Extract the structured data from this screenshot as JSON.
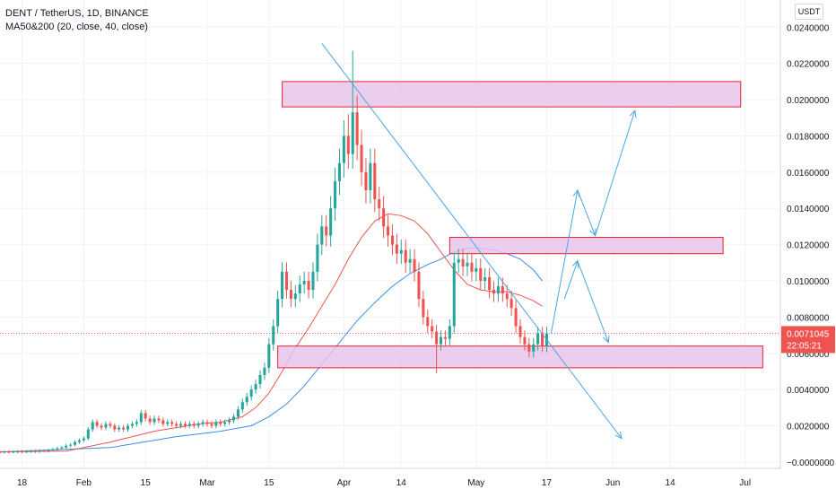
{
  "legend": {
    "symbol": "DENT / TetherUS, 1D, BINANCE",
    "indicator": "MA50&200 (20, close, 40, close)"
  },
  "currency": "USDT",
  "price_label": {
    "value": "0.0071045",
    "timer": "22:05:21",
    "color": "#ef5350"
  },
  "colors": {
    "up": "#26a69a",
    "down": "#ef5350",
    "ma_fast": "#ef5350",
    "ma_slow": "#3a8ee6",
    "zone_fill": "#e8c4ea",
    "zone_stroke": "#ef1f2f",
    "drawing": "#4aa8e0"
  },
  "chart_data": {
    "type": "candlestick",
    "title": "DENT / TetherUS, 1D, BINANCE",
    "ylim": [
      -0.0005,
      0.0255
    ],
    "y_ticks": [
      "0.0240000",
      "0.0220000",
      "0.0200000",
      "0.0180000",
      "0.0160000",
      "0.0140000",
      "0.0120000",
      "0.0100000",
      "0.0080000",
      "0.0060000",
      "0.0040000",
      "0.0020000",
      "−0.0000000"
    ],
    "y_tick_values": [
      0.024,
      0.022,
      0.02,
      0.018,
      0.016,
      0.014,
      0.012,
      0.01,
      0.008,
      0.006,
      0.004,
      0.002,
      0
    ],
    "x_ticks": [
      {
        "label": "18",
        "date": "2021-01-18"
      },
      {
        "label": "Feb",
        "date": "2021-02-01"
      },
      {
        "label": "15",
        "date": "2021-02-15"
      },
      {
        "label": "Mar",
        "date": "2021-03-01"
      },
      {
        "label": "15",
        "date": "2021-03-15"
      },
      {
        "label": "Apr",
        "date": "2021-04-01"
      },
      {
        "label": "14",
        "date": "2021-04-14"
      },
      {
        "label": "May",
        "date": "2021-05-01"
      },
      {
        "label": "17",
        "date": "2021-05-17"
      },
      {
        "label": "Jun",
        "date": "2021-06-01"
      },
      {
        "label": "14",
        "date": "2021-06-14"
      },
      {
        "label": "Jul",
        "date": "2021-07-01"
      }
    ],
    "first_date": "2021-01-08",
    "closes": [
      0.00055,
      0.00056,
      0.00055,
      0.00056,
      0.00056,
      0.00055,
      0.00057,
      0.00056,
      0.00057,
      0.00058,
      0.00057,
      0.00058,
      0.0006,
      0.00058,
      0.00062,
      0.0006,
      0.00065,
      0.0007,
      0.00075,
      0.0008,
      0.0009,
      0.00095,
      0.0011,
      0.0012,
      0.0013,
      0.0018,
      0.0022,
      0.002,
      0.0019,
      0.0021,
      0.002,
      0.0018,
      0.0019,
      0.0018,
      0.002,
      0.0021,
      0.0022,
      0.0027,
      0.0024,
      0.0022,
      0.0024,
      0.0023,
      0.0021,
      0.0022,
      0.0021,
      0.002,
      0.0021,
      0.002,
      0.0021,
      0.002,
      0.0021,
      0.0022,
      0.0021,
      0.002,
      0.0022,
      0.0021,
      0.0022,
      0.0023,
      0.0025,
      0.0029,
      0.0033,
      0.0036,
      0.004,
      0.0043,
      0.0048,
      0.0052,
      0.0065,
      0.0075,
      0.009,
      0.0105,
      0.0095,
      0.009,
      0.0093,
      0.0098,
      0.01,
      0.0095,
      0.0105,
      0.012,
      0.013,
      0.0125,
      0.014,
      0.0155,
      0.0165,
      0.018,
      0.017,
      0.0193,
      0.0175,
      0.016,
      0.015,
      0.0165,
      0.0145,
      0.014,
      0.013,
      0.0125,
      0.012,
      0.0115,
      0.0117,
      0.011,
      0.0112,
      0.0105,
      0.009,
      0.008,
      0.0075,
      0.0072,
      0.0065,
      0.0069,
      0.0068,
      0.0075,
      0.011,
      0.0112,
      0.0108,
      0.011,
      0.0105,
      0.0107,
      0.01,
      0.0102,
      0.0095,
      0.0093,
      0.0097,
      0.0093,
      0.009,
      0.0085,
      0.0075,
      0.0069,
      0.0065,
      0.0061,
      0.0065,
      0.0071,
      0.0064,
      0.0071
    ],
    "ma20": [
      [
        0,
        0.00055
      ],
      [
        20,
        0.0006
      ],
      [
        30,
        0.0011
      ],
      [
        40,
        0.0017
      ],
      [
        50,
        0.0021
      ],
      [
        55,
        0.0022
      ],
      [
        60,
        0.0025
      ],
      [
        63,
        0.003
      ],
      [
        66,
        0.0038
      ],
      [
        69,
        0.005
      ],
      [
        72,
        0.0063
      ],
      [
        75,
        0.0074
      ],
      [
        78,
        0.0086
      ],
      [
        81,
        0.0098
      ],
      [
        84,
        0.0112
      ],
      [
        87,
        0.0124
      ],
      [
        90,
        0.0133
      ],
      [
        93,
        0.0137
      ],
      [
        96,
        0.0136
      ],
      [
        99,
        0.0133
      ],
      [
        102,
        0.0126
      ],
      [
        105,
        0.0116
      ],
      [
        108,
        0.0106
      ],
      [
        111,
        0.0098
      ],
      [
        114,
        0.0095
      ],
      [
        117,
        0.0094
      ],
      [
        120,
        0.0094
      ],
      [
        123,
        0.0092
      ],
      [
        126,
        0.0089
      ],
      [
        128,
        0.0086
      ]
    ],
    "ma40": [
      [
        0,
        0.0005
      ],
      [
        30,
        0.0008
      ],
      [
        45,
        0.0014
      ],
      [
        55,
        0.0017
      ],
      [
        62,
        0.002
      ],
      [
        66,
        0.0025
      ],
      [
        70,
        0.0032
      ],
      [
        74,
        0.0042
      ],
      [
        78,
        0.0054
      ],
      [
        82,
        0.0066
      ],
      [
        86,
        0.0078
      ],
      [
        90,
        0.0088
      ],
      [
        94,
        0.0097
      ],
      [
        98,
        0.0104
      ],
      [
        102,
        0.0109
      ],
      [
        105,
        0.0112
      ],
      [
        108,
        0.0116
      ],
      [
        111,
        0.0118
      ],
      [
        114,
        0.0118
      ],
      [
        117,
        0.0117
      ],
      [
        120,
        0.0115
      ],
      [
        123,
        0.0112
      ],
      [
        126,
        0.0106
      ],
      [
        128,
        0.01
      ]
    ],
    "zones": [
      {
        "from": "2021-03-18",
        "to": "2021-06-30",
        "low": 0.0196,
        "high": 0.021
      },
      {
        "from": "2021-04-25",
        "to": "2021-06-26",
        "low": 0.0115,
        "high": 0.0124
      },
      {
        "from": "2021-03-17",
        "to": "2021-07-05",
        "low": 0.0052,
        "high": 0.0064
      }
    ],
    "trendline": {
      "from": [
        "2021-03-27",
        0.0231
      ],
      "to": [
        "2021-06-03",
        0.0013
      ]
    },
    "arrows": [
      {
        "points": [
          [
            "2021-05-18",
            0.0071
          ],
          [
            "2021-05-24",
            0.015
          ],
          [
            "2021-05-28",
            0.0125
          ],
          [
            "2021-06-06",
            0.0194
          ]
        ]
      },
      {
        "points": [
          [
            "2021-05-21",
            0.009
          ],
          [
            "2021-05-24",
            0.0111
          ],
          [
            "2021-05-31",
            0.0066
          ]
        ]
      }
    ],
    "last_price": 0.0071045
  }
}
